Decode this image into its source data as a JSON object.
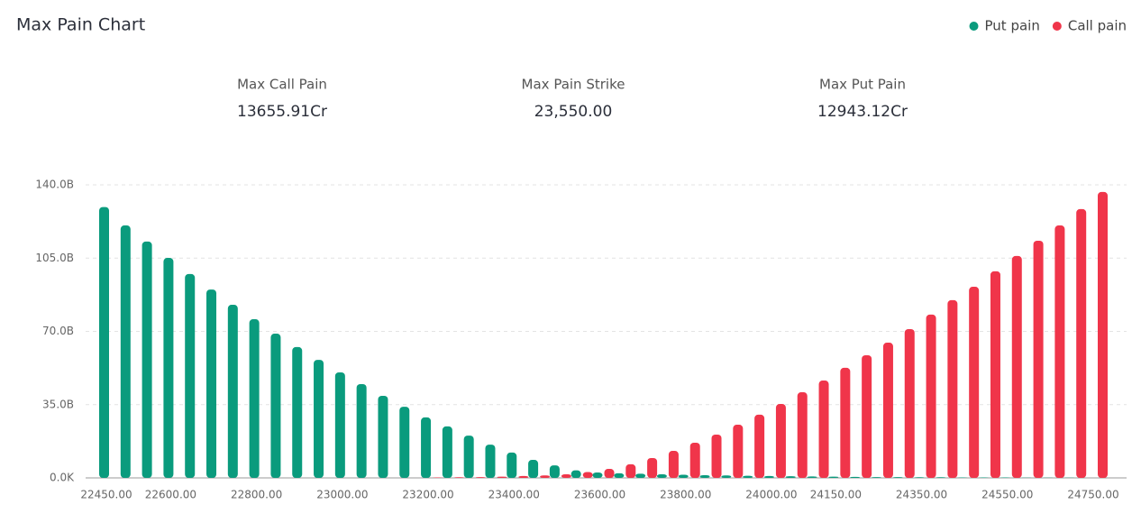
{
  "chart_data": {
    "type": "bar",
    "title": "Max Pain Chart",
    "summary": [
      {
        "label": "Max Call Pain",
        "value": "13655.91Cr"
      },
      {
        "label": "Max Pain Strike",
        "value": "23,550.00"
      },
      {
        "label": "Max Put Pain",
        "value": "12943.12Cr"
      }
    ],
    "categories": [
      "22450.00",
      null,
      null,
      "22600.00",
      null,
      null,
      null,
      "22800.00",
      null,
      null,
      null,
      "23000.00",
      null,
      null,
      null,
      "23200.00",
      null,
      null,
      null,
      "23400.00",
      null,
      null,
      null,
      "23600.00",
      null,
      null,
      null,
      "23800.00",
      null,
      null,
      null,
      "24000.00",
      null,
      null,
      "24150.00",
      null,
      null,
      null,
      "24350.00",
      null,
      null,
      null,
      "24550.00",
      null,
      null,
      null,
      "24750.00"
    ],
    "series": [
      {
        "name": "Put pain",
        "color": "#0a9b7d",
        "values": [
          129.4,
          120.6,
          112.9,
          105.1,
          97.4,
          90.0,
          82.7,
          75.8,
          68.9,
          62.5,
          56.4,
          50.4,
          44.8,
          39.2,
          34.0,
          28.9,
          24.6,
          20.2,
          15.9,
          12.1,
          8.6,
          6.0,
          3.6,
          2.6,
          2.2,
          2.0,
          1.7,
          1.5,
          1.3,
          1.2,
          1.0,
          0.9,
          0.8,
          0.7,
          0.6,
          0.5,
          0.4,
          0.4,
          0.3,
          0.3,
          0.2,
          0.2,
          0.2,
          0.1,
          0.1,
          0.1,
          0
        ]
      },
      {
        "name": "Call pain",
        "color": "#f0354a",
        "values": [
          0,
          0,
          0,
          0,
          0,
          0,
          0,
          0,
          0,
          0,
          0,
          0,
          0,
          0,
          0,
          0.2,
          0.3,
          0.4,
          0.6,
          0.9,
          1.2,
          1.7,
          2.8,
          4.3,
          6.5,
          9.5,
          12.9,
          16.8,
          20.7,
          25.4,
          30.2,
          35.3,
          40.9,
          46.5,
          52.6,
          58.6,
          64.6,
          71.1,
          78.0,
          84.9,
          91.3,
          98.7,
          106.0,
          113.3,
          120.6,
          128.4,
          136.6
        ]
      }
    ],
    "ylim": [
      0,
      140
    ],
    "yticks": [
      {
        "value": 0,
        "label": "0.0K"
      },
      {
        "value": 35,
        "label": "35.0B"
      },
      {
        "value": 70,
        "label": "70.0B"
      },
      {
        "value": 105,
        "label": "105.0B"
      },
      {
        "value": 140,
        "label": "140.0B"
      }
    ],
    "grid": true
  }
}
